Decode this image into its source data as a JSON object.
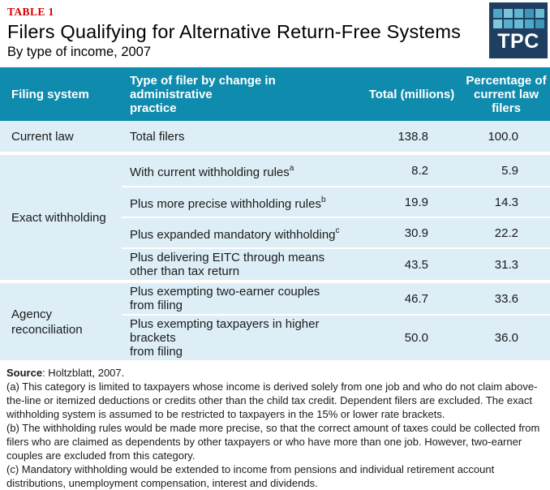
{
  "meta": {
    "table_label": "TABLE 1",
    "title": "Filers Qualifying for Alternative Return-Free Systems",
    "subtitle": "By type of income, 2007"
  },
  "logo": {
    "text": "TPC",
    "squares": [
      "#4ea7c6",
      "#79c2da",
      "#5fb4d0",
      "#3c96b8",
      "#6bbad4",
      "#82c6dc",
      "#58aecb",
      "#6bbad4",
      "#4ea7c6",
      "#3c96b8"
    ]
  },
  "table": {
    "columns": [
      "Filing system",
      "Type of filer by change in administrative\npractice",
      "Total (millions)",
      "Percentage of\ncurrent law\nfilers"
    ],
    "groups": [
      {
        "system": "Current law",
        "rows": [
          {
            "filer": "Total filers",
            "sup": "",
            "total": "138.8",
            "pct": "100.0"
          }
        ]
      },
      {
        "system": "Exact withholding",
        "rows": [
          {
            "filer": "With current withholding rules",
            "sup": "a",
            "total": "8.2",
            "pct": "5.9"
          },
          {
            "filer": "Plus more precise withholding rules",
            "sup": "b",
            "total": "19.9",
            "pct": "14.3"
          },
          {
            "filer": "Plus expanded mandatory withholding",
            "sup": "c",
            "total": "30.9",
            "pct": "22.2"
          },
          {
            "filer": "Plus delivering EITC through means\nother than tax return",
            "sup": "",
            "total": "43.5",
            "pct": "31.3"
          }
        ]
      },
      {
        "system": "Agency\nreconciliation",
        "rows": [
          {
            "filer": "Plus exempting two-earner couples\nfrom filing",
            "sup": "",
            "total": "46.7",
            "pct": "33.6"
          },
          {
            "filer": "Plus exempting taxpayers in higher brackets\nfrom filing",
            "sup": "",
            "total": "50.0",
            "pct": "36.0"
          }
        ]
      }
    ]
  },
  "footnotes": {
    "source_label": "Source",
    "source_text": ": Holtzblatt, 2007.",
    "notes": [
      "(a) This category is limited to taxpayers whose income is derived solely from one job and who do not claim above-the-line or itemized deductions or credits other than the child tax credit. Dependent filers are excluded. The exact withholding system is assumed to be restricted to taxpayers in the 15% or lower rate brackets.",
      "(b) The withholding rules would be made more precise, so that the correct amount of taxes could be collected from filers who are claimed as dependents by other taxpayers or who have more than one job. However, two-earner couples are excluded from this category.",
      "(c) Mandatory withholding would be extended to income from pensions and individual retirement account distributions, unemployment compensation, interest and dividends."
    ]
  },
  "colors": {
    "header_bg": "#0f8bad",
    "row_bg": "#ddeef7",
    "table_label_color": "#d40000",
    "logo_bg": "#1e3f60"
  }
}
